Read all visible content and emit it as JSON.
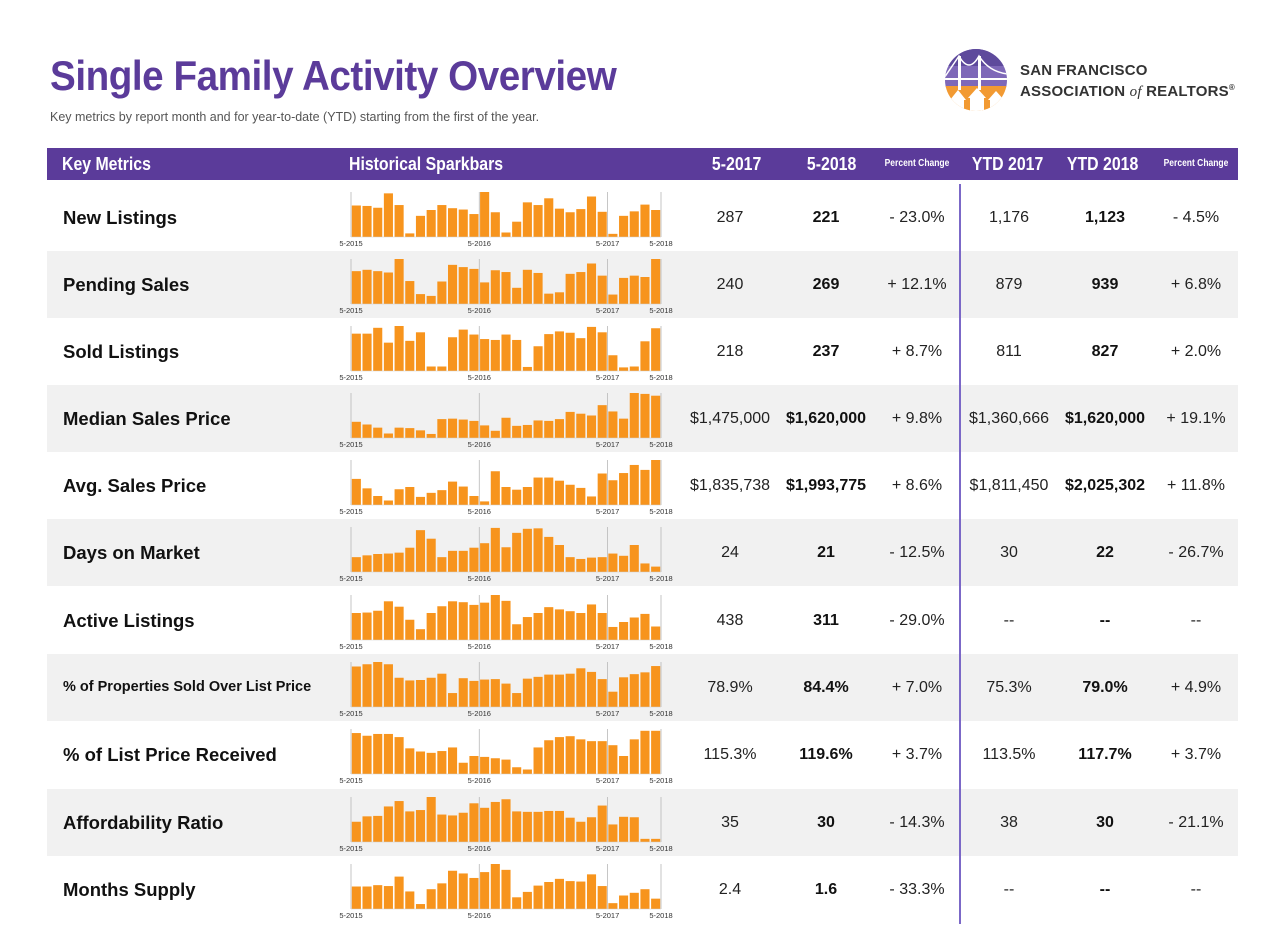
{
  "header": {
    "title": "Single Family Activity Overview",
    "subtitle": "Key metrics by report month and for year-to-date (YTD) starting from the first of the year.",
    "logo": {
      "line1": "SAN FRANCISCO",
      "line2a": "ASSOCIATION ",
      "line2b": "of",
      "line2c": " REALTORS",
      "reg": "®"
    }
  },
  "table": {
    "columns": {
      "key_metrics": "Key Metrics",
      "sparkbars": "Historical Sparkbars",
      "m2017": "5-2017",
      "m2018": "5-2018",
      "pct1": "Percent Change",
      "ytd2017": "YTD 2017",
      "ytd2018": "YTD 2018",
      "pct2": "Percent Change"
    },
    "spark_labels": [
      "5-2015",
      "5-2016",
      "5-2017",
      "5-2018"
    ],
    "colors": {
      "header": "#5b3b9a",
      "bar": "#f7941d",
      "divider": "#7b68c7",
      "shade": "#f1f1f1"
    },
    "rows": [
      {
        "name": "New Listings",
        "m2017": "287",
        "m2018": "221",
        "pct1": "- 23.0%",
        "ytd2017": "1,176",
        "ytd2018": "1,123",
        "pct2": "- 4.5%",
        "bars": [
          0.7,
          0.69,
          0.65,
          0.97,
          0.71,
          0.08,
          0.47,
          0.6,
          0.71,
          0.64,
          0.61,
          0.51,
          1.0,
          0.55,
          0.1,
          0.34,
          0.77,
          0.71,
          0.86,
          0.63,
          0.55,
          0.62,
          0.9,
          0.56,
          0.07,
          0.47,
          0.57,
          0.72,
          0.6
        ]
      },
      {
        "name": "Pending Sales",
        "m2017": "240",
        "m2018": "269",
        "pct1": "+ 12.1%",
        "ytd2017": "879",
        "ytd2018": "939",
        "pct2": "+ 6.8%",
        "bars": [
          0.73,
          0.76,
          0.73,
          0.7,
          1.0,
          0.51,
          0.22,
          0.18,
          0.5,
          0.87,
          0.82,
          0.78,
          0.48,
          0.75,
          0.71,
          0.36,
          0.76,
          0.69,
          0.23,
          0.26,
          0.67,
          0.71,
          0.9,
          0.63,
          0.21,
          0.58,
          0.63,
          0.6,
          1.0
        ]
      },
      {
        "name": "Sold Listings",
        "m2017": "218",
        "m2018": "237",
        "pct1": "+ 8.7%",
        "ytd2017": "811",
        "ytd2018": "827",
        "pct2": "+ 2.0%",
        "bars": [
          0.83,
          0.83,
          0.96,
          0.63,
          1.0,
          0.67,
          0.86,
          0.1,
          0.1,
          0.75,
          0.92,
          0.81,
          0.71,
          0.69,
          0.81,
          0.69,
          0.09,
          0.55,
          0.82,
          0.88,
          0.85,
          0.73,
          0.98,
          0.86,
          0.35,
          0.08,
          0.1,
          0.66,
          0.95
        ]
      },
      {
        "name": "Median Sales Price",
        "m2017": "$1,475,000",
        "m2018": "$1,620,000",
        "pct1": "+ 9.8%",
        "ytd2017": "$1,360,666",
        "ytd2018": "$1,620,000",
        "pct2": "+ 19.1%",
        "bars": [
          0.36,
          0.3,
          0.23,
          0.1,
          0.23,
          0.22,
          0.17,
          0.09,
          0.42,
          0.43,
          0.41,
          0.38,
          0.28,
          0.16,
          0.45,
          0.27,
          0.29,
          0.39,
          0.38,
          0.42,
          0.58,
          0.54,
          0.5,
          0.73,
          0.59,
          0.43,
          1.0,
          0.98,
          0.94
        ]
      },
      {
        "name": "Avg. Sales Price",
        "m2017": "$1,835,738",
        "m2018": "$1,993,775",
        "pct1": "+ 8.6%",
        "ytd2017": "$1,811,450",
        "ytd2018": "$2,025,302",
        "pct2": "+ 11.8%",
        "bars": [
          0.58,
          0.37,
          0.2,
          0.1,
          0.35,
          0.4,
          0.18,
          0.27,
          0.33,
          0.52,
          0.41,
          0.2,
          0.08,
          0.75,
          0.4,
          0.34,
          0.4,
          0.61,
          0.61,
          0.54,
          0.45,
          0.38,
          0.19,
          0.7,
          0.55,
          0.71,
          0.89,
          0.78,
          1.0
        ]
      },
      {
        "name": "Days on Market",
        "m2017": "24",
        "m2018": "21",
        "pct1": "- 12.5%",
        "ytd2017": "30",
        "ytd2018": "22",
        "pct2": "- 26.7%",
        "bars": [
          0.33,
          0.37,
          0.4,
          0.41,
          0.43,
          0.54,
          0.93,
          0.74,
          0.33,
          0.47,
          0.47,
          0.54,
          0.64,
          0.98,
          0.55,
          0.87,
          0.96,
          0.97,
          0.78,
          0.6,
          0.33,
          0.29,
          0.32,
          0.33,
          0.41,
          0.36,
          0.6,
          0.19,
          0.12
        ]
      },
      {
        "name": "Active Listings",
        "m2017": "438",
        "m2018": "311",
        "pct1": "- 29.0%",
        "ytd2017": "--",
        "ytd2018": "--",
        "pct2": "--",
        "bars": [
          0.6,
          0.61,
          0.65,
          0.86,
          0.74,
          0.45,
          0.24,
          0.6,
          0.75,
          0.86,
          0.84,
          0.78,
          0.83,
          1.0,
          0.87,
          0.35,
          0.51,
          0.6,
          0.73,
          0.68,
          0.64,
          0.6,
          0.79,
          0.6,
          0.29,
          0.4,
          0.5,
          0.58,
          0.3
        ]
      },
      {
        "name": "% of Properties Sold Over List Price",
        "m2017": "78.9%",
        "m2018": "84.4%",
        "pct1": "+ 7.0%",
        "ytd2017": "75.3%",
        "ytd2018": "79.0%",
        "pct2": "+ 4.9%",
        "bars": [
          0.9,
          0.95,
          1.0,
          0.95,
          0.65,
          0.59,
          0.6,
          0.65,
          0.74,
          0.31,
          0.64,
          0.58,
          0.61,
          0.62,
          0.52,
          0.31,
          0.63,
          0.67,
          0.72,
          0.72,
          0.74,
          0.86,
          0.78,
          0.62,
          0.34,
          0.66,
          0.73,
          0.77,
          0.91
        ]
      },
      {
        "name": "% of List Price Received",
        "m2017": "115.3%",
        "m2018": "119.6%",
        "pct1": "+ 3.7%",
        "ytd2017": "113.5%",
        "ytd2018": "117.7%",
        "pct2": "+ 3.7%",
        "bars": [
          0.91,
          0.85,
          0.89,
          0.89,
          0.82,
          0.57,
          0.5,
          0.47,
          0.51,
          0.59,
          0.25,
          0.4,
          0.38,
          0.35,
          0.32,
          0.15,
          0.1,
          0.59,
          0.75,
          0.82,
          0.84,
          0.77,
          0.73,
          0.73,
          0.64,
          0.4,
          0.77,
          0.96,
          0.96
        ]
      },
      {
        "name": "Affordability Ratio",
        "m2017": "35",
        "m2018": "30",
        "pct1": "- 14.3%",
        "ytd2017": "38",
        "ytd2018": "30",
        "pct2": "- 21.1%",
        "bars": [
          0.45,
          0.57,
          0.58,
          0.79,
          0.91,
          0.68,
          0.71,
          1.0,
          0.61,
          0.59,
          0.65,
          0.86,
          0.76,
          0.89,
          0.95,
          0.68,
          0.67,
          0.67,
          0.69,
          0.69,
          0.54,
          0.45,
          0.55,
          0.81,
          0.39,
          0.56,
          0.55,
          0.07,
          0.07
        ]
      },
      {
        "name": "Months Supply",
        "m2017": "2.4",
        "m2018": "1.6",
        "pct1": "- 33.3%",
        "ytd2017": "--",
        "ytd2018": "--",
        "pct2": "--",
        "bars": [
          0.5,
          0.5,
          0.53,
          0.51,
          0.72,
          0.39,
          0.11,
          0.44,
          0.57,
          0.85,
          0.79,
          0.69,
          0.82,
          1.0,
          0.87,
          0.26,
          0.38,
          0.52,
          0.6,
          0.67,
          0.62,
          0.61,
          0.77,
          0.51,
          0.13,
          0.3,
          0.36,
          0.44,
          0.23
        ]
      }
    ]
  }
}
